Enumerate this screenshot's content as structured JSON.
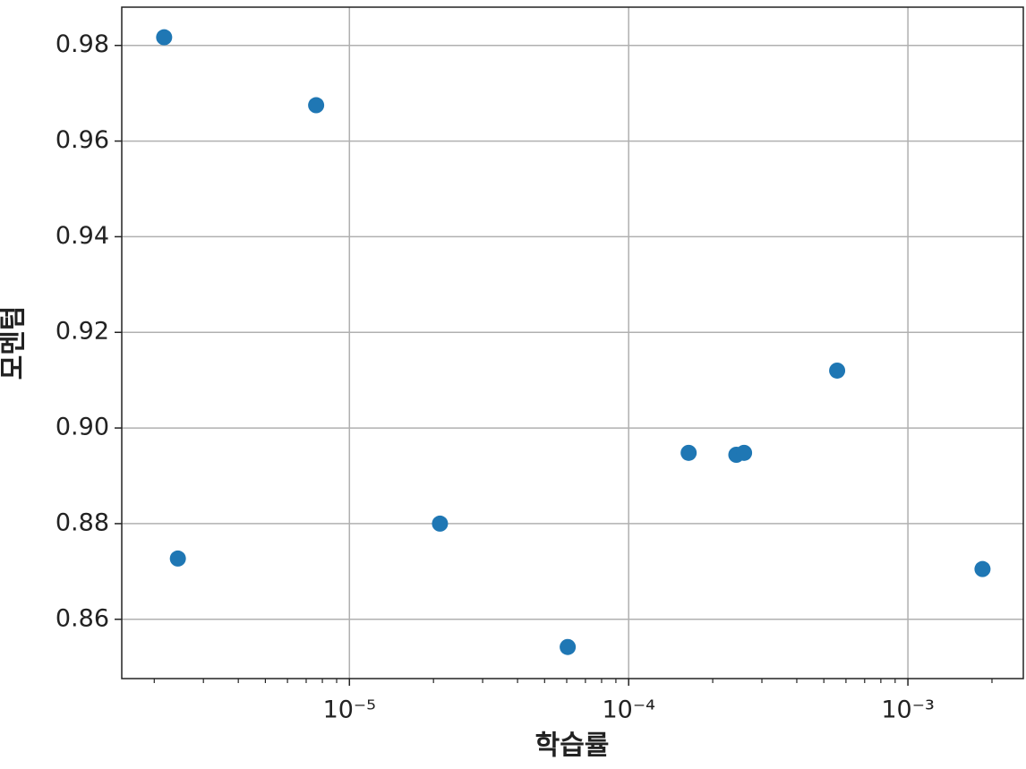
{
  "chart_data": {
    "type": "scatter",
    "x_label": "학습률",
    "y_label": "모멘텀",
    "x_scale": "log",
    "grid": true,
    "color": "#1f77b4",
    "series": [
      {
        "x": [
          2.17e-06,
          2.43e-06,
          7.6e-06,
          2.11e-05,
          6.05e-05,
          0.000164,
          0.000243,
          0.000259,
          0.000558,
          0.00185
        ],
        "values": [
          0.9817,
          0.8727,
          0.9675,
          0.88,
          0.8542,
          0.8948,
          0.8944,
          0.8948,
          0.912,
          0.8705
        ]
      }
    ],
    "xlim": [
      1.53e-06,
      0.00259
    ],
    "ylim": [
      0.8476,
      0.988
    ],
    "xticks": [
      {
        "value": 1e-05,
        "label": "10⁻⁵"
      },
      {
        "value": 0.0001,
        "label": "10⁻⁴"
      },
      {
        "value": 0.001,
        "label": "10⁻³"
      }
    ],
    "xminorticks": [
      2e-06,
      3e-06,
      4e-06,
      5e-06,
      6e-06,
      7e-06,
      8e-06,
      9e-06,
      2e-05,
      3e-05,
      4e-05,
      5e-05,
      6e-05,
      7e-05,
      8e-05,
      9e-05,
      0.0002,
      0.0003,
      0.0004,
      0.0005,
      0.0006,
      0.0007,
      0.0008,
      0.0009,
      0.002
    ],
    "yticks": [
      0.86,
      0.88,
      {
        "value": 0.9,
        "label": "0.90"
      },
      0.92,
      0.94,
      0.96,
      0.98
    ]
  }
}
